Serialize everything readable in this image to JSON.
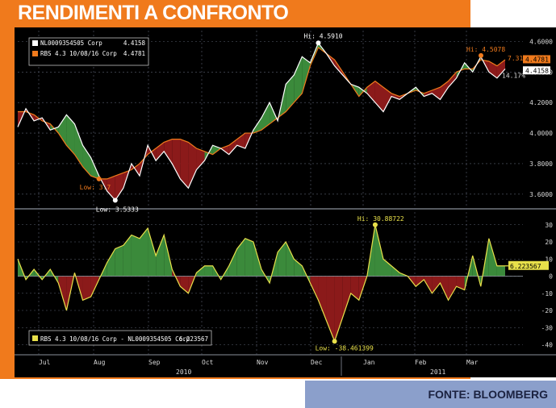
{
  "title": "RENDIMENTI A CONFRONTO",
  "source": "FONTE:  BLOOMBERG",
  "colors": {
    "background": "#000000",
    "line1": "#ffffff",
    "line2": "#f07a1c",
    "spread_line": "#e8e04a",
    "fill_positive": "#3b8a3b",
    "fill_negative": "#8b1a1a",
    "grid": "#5a6070"
  },
  "chart_data": [
    {
      "type": "line",
      "legend": [
        {
          "label": "NL0009354505 Corp",
          "value": "4.4158",
          "color": "#ffffff"
        },
        {
          "label": "RBS 4.3 10/08/16 Corp",
          "value": "4.4781",
          "color": "#f07a1c"
        }
      ],
      "y_ticks": [
        "4.6000",
        "4.4000",
        "4.2000",
        "4.0000",
        "3.8000",
        "3.6000"
      ],
      "ylim": [
        3.52,
        4.66
      ],
      "annotations": {
        "hi1": "Hi: 4.5910",
        "hi2": "Hi: 4.5078",
        "low1": "Low: 3.5333",
        "low2": "Low: 3.7",
        "pct": "7.31%",
        "tag_rbs": "4.4781",
        "tag_nl": "4.4158",
        "tag_extra": "14.17%"
      },
      "series": [
        {
          "name": "NL0009354505 Corp",
          "values": [
            4.04,
            4.16,
            4.08,
            4.1,
            4.02,
            4.04,
            4.12,
            4.06,
            3.92,
            3.84,
            3.72,
            3.62,
            3.56,
            3.64,
            3.8,
            3.72,
            3.92,
            3.82,
            3.88,
            3.8,
            3.7,
            3.64,
            3.76,
            3.82,
            3.92,
            3.9,
            3.86,
            3.92,
            3.9,
            4.02,
            4.1,
            4.2,
            4.08,
            4.32,
            4.38,
            4.5,
            4.46,
            4.59,
            4.52,
            4.44,
            4.38,
            4.32,
            4.3,
            4.26,
            4.2,
            4.14,
            4.24,
            4.22,
            4.26,
            4.3,
            4.24,
            4.26,
            4.22,
            4.3,
            4.36,
            4.46,
            4.4,
            4.5,
            4.4,
            4.36,
            4.42
          ]
        },
        {
          "name": "RBS 4.3 10/08/16 Corp",
          "values": [
            4.14,
            4.14,
            4.12,
            4.08,
            4.06,
            4.0,
            3.92,
            3.86,
            3.78,
            3.72,
            3.7,
            3.7,
            3.72,
            3.74,
            3.76,
            3.8,
            3.86,
            3.9,
            3.94,
            3.96,
            3.96,
            3.94,
            3.9,
            3.88,
            3.86,
            3.9,
            3.92,
            3.96,
            4.0,
            4.0,
            4.02,
            4.06,
            4.1,
            4.14,
            4.2,
            4.26,
            4.44,
            4.56,
            4.52,
            4.48,
            4.4,
            4.32,
            4.24,
            4.3,
            4.34,
            4.3,
            4.26,
            4.24,
            4.26,
            4.28,
            4.26,
            4.28,
            4.3,
            4.34,
            4.4,
            4.42,
            4.42,
            4.48,
            4.47,
            4.44,
            4.48
          ]
        }
      ]
    },
    {
      "type": "area",
      "legend": [
        {
          "label": "RBS 4.3 10/08/16 Corp - NL0009354505 Corp",
          "value": "6.223567",
          "color": "#e8e04a"
        }
      ],
      "y_ticks": [
        "30",
        "20",
        "10",
        "0",
        "-10",
        "-20",
        "-30",
        "-40"
      ],
      "ylim": [
        -44,
        36
      ],
      "annotations": {
        "hi": "Hi: 30.88722",
        "low": "Low: -38.461399",
        "last": "6.223567"
      },
      "x_ticks": [
        "Jul",
        "Aug",
        "Sep",
        "Oct",
        "Nov",
        "Dec",
        "Jan",
        "Feb",
        "Mar"
      ],
      "years": [
        "2010",
        "2011"
      ],
      "values": [
        10,
        -2,
        4,
        -2,
        4,
        -4,
        -20,
        2,
        -14,
        -12,
        -2,
        8,
        16,
        18,
        24,
        22,
        28,
        12,
        24,
        4,
        -6,
        -10,
        2,
        6,
        6,
        -2,
        6,
        16,
        22,
        20,
        4,
        -4,
        14,
        20,
        10,
        6,
        -4,
        -14,
        -26,
        -38,
        -24,
        -10,
        -14,
        0,
        30,
        10,
        6,
        2,
        0,
        -6,
        -2,
        -10,
        -4,
        -14,
        -6,
        -8,
        12,
        -6,
        22,
        6,
        6
      ]
    }
  ]
}
